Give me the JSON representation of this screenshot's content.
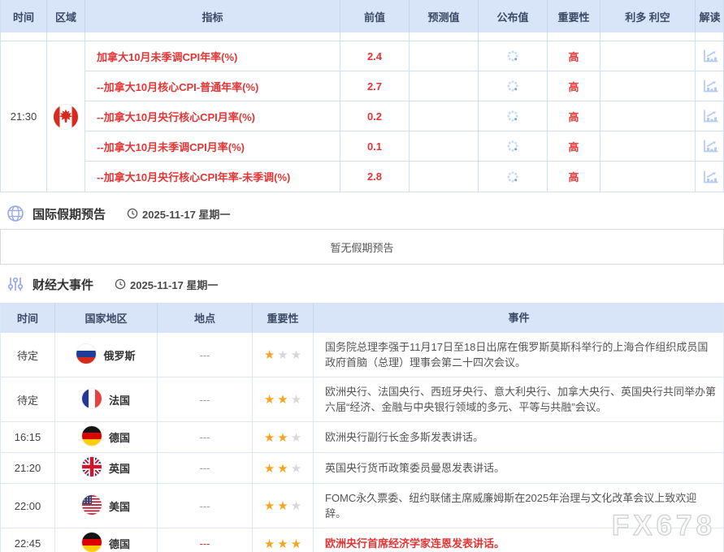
{
  "colors": {
    "header_bg": "#d8e4f8",
    "accent_red": "#e23636",
    "star_gold": "#f7a521",
    "icon_blue": "#9aa9e8"
  },
  "indicator_table": {
    "columns": [
      "时间",
      "区域",
      "指标",
      "前值",
      "预测值",
      "公布值",
      "重要性",
      "利多 利空",
      "解读"
    ],
    "time": "21:30",
    "region": "加拿大",
    "rows": [
      {
        "indicator": "加拿大10月未季调CPI年率(%)",
        "previous": "2.4",
        "forecast": "",
        "importance": "高"
      },
      {
        "indicator": "--加拿大10月核心CPI-普通年率(%)",
        "previous": "2.7",
        "forecast": "",
        "importance": "高"
      },
      {
        "indicator": "--加拿大10月央行核心CPI月率(%)",
        "previous": "0.2",
        "forecast": "",
        "importance": "高"
      },
      {
        "indicator": "--加拿大10月未季调CPI月率(%)",
        "previous": "0.1",
        "forecast": "",
        "importance": "高"
      },
      {
        "indicator": "--加拿大10月央行核心CPI年率-未季调(%)",
        "previous": "2.8",
        "forecast": "",
        "importance": "高"
      }
    ]
  },
  "holiday_section": {
    "title": "国际假期预告",
    "date": "2025-11-17 星期一",
    "empty_text": "暂无假期预告"
  },
  "events_section": {
    "title": "财经大事件",
    "date": "2025-11-17 星期一",
    "columns": [
      "时间",
      "国家地区",
      "地点",
      "重要性",
      "事件"
    ],
    "rows": [
      {
        "time": "待定",
        "country": "俄罗斯",
        "flag": "russia",
        "location": "---",
        "stars": 1,
        "highlight": false,
        "event": "国务院总理李强于11月17日至18日出席在俄罗斯莫斯科举行的上海合作组织成员国政府首脑（总理）理事会第二十四次会议。"
      },
      {
        "time": "待定",
        "country": "法国",
        "flag": "france",
        "location": "---",
        "stars": 2,
        "highlight": false,
        "event": "欧洲央行、法国央行、西班牙央行、意大利央行、加拿大央行、英国央行共同举办第六届“经济、金融与中央银行领域的多元、平等与共融”会议。"
      },
      {
        "time": "16:15",
        "country": "德国",
        "flag": "germany",
        "location": "---",
        "stars": 2,
        "highlight": false,
        "event": "欧洲央行副行长金多斯发表讲话。"
      },
      {
        "time": "21:20",
        "country": "英国",
        "flag": "uk",
        "location": "---",
        "stars": 2,
        "highlight": false,
        "event": "英国央行货币政策委员曼恩发表讲话。"
      },
      {
        "time": "22:00",
        "country": "美国",
        "flag": "usa",
        "location": "---",
        "stars": 2,
        "highlight": false,
        "event": "FOMC永久票委、纽约联储主席威廉姆斯在2025年治理与文化改革会议上致欢迎辞。"
      },
      {
        "time": "22:45",
        "country": "德国",
        "flag": "germany",
        "location": "---",
        "stars": 3,
        "highlight": true,
        "event": "欧洲央行首席经济学家连恩发表讲话。"
      }
    ]
  },
  "watermark": "FX678"
}
